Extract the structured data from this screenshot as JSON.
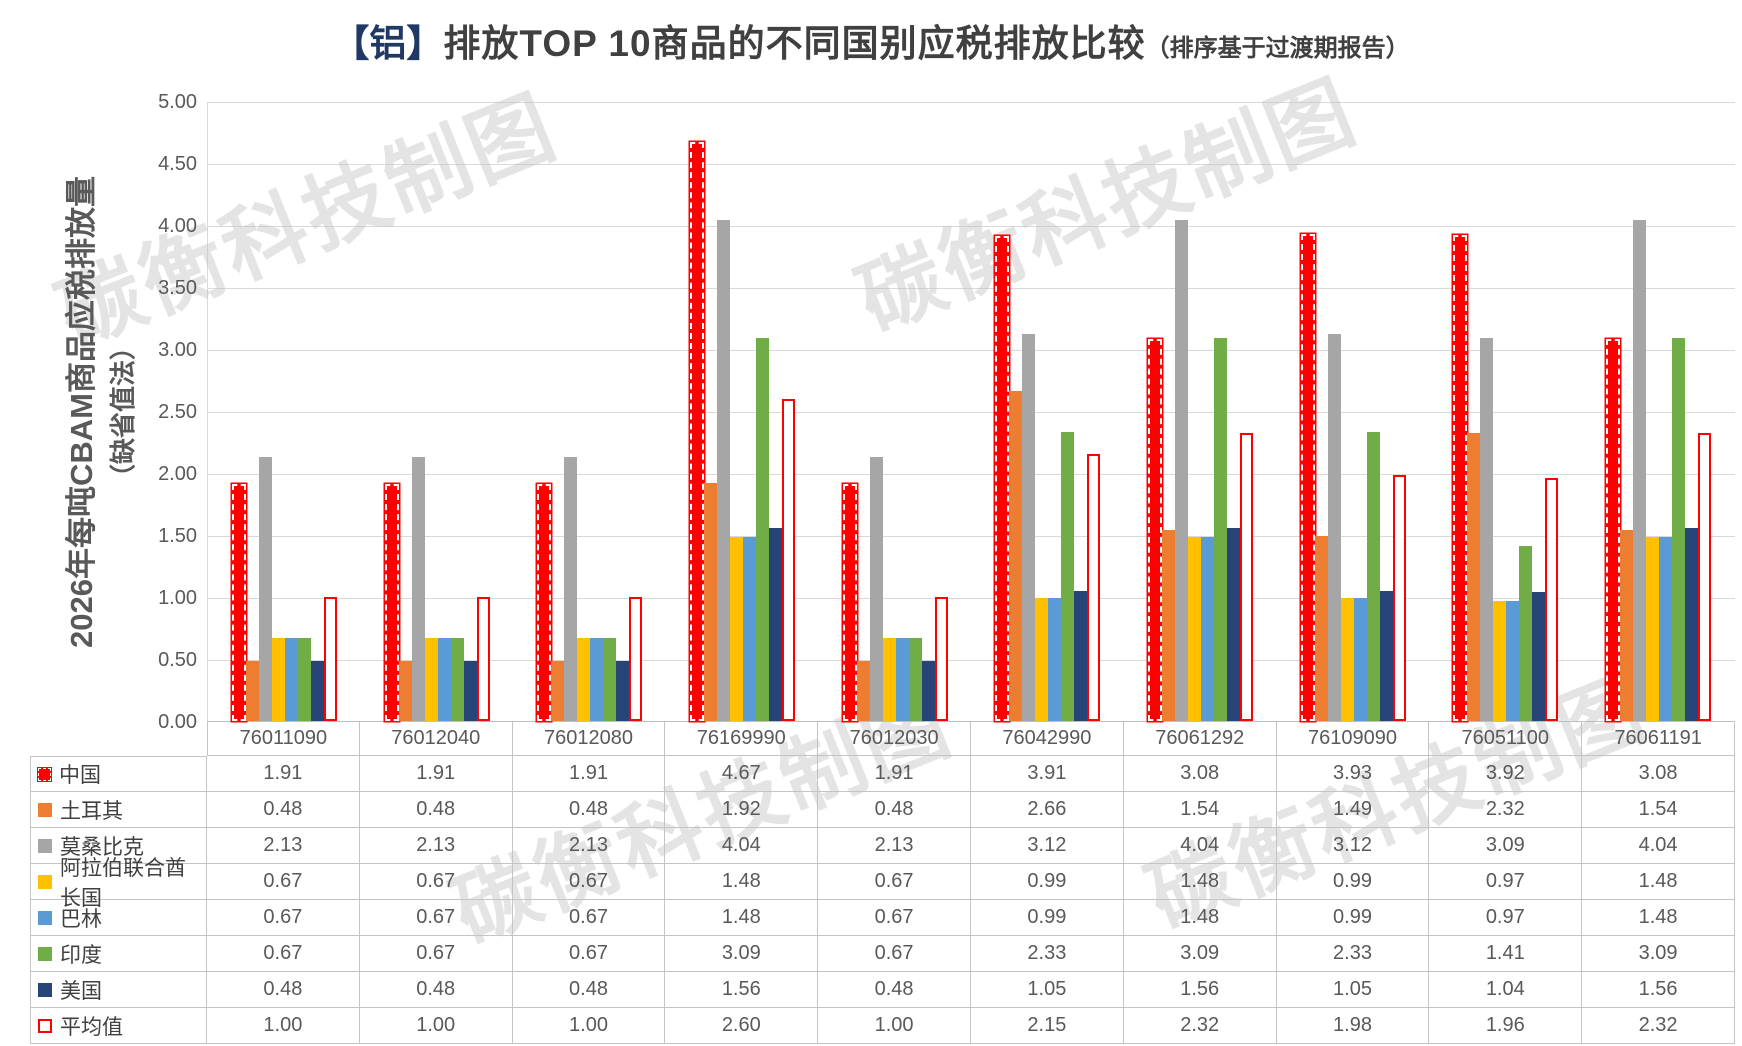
{
  "title": {
    "prefix": "【铝】",
    "main": "排放TOP 10商品的不同国别应税排放比较",
    "suffix": "（排序基于过渡期报告）"
  },
  "watermark": {
    "text": "碳衡科技制图"
  },
  "chart_data": {
    "type": "bar",
    "title": "【铝】排放TOP 10商品的不同国别应税排放比较（排序基于过渡期报告）",
    "ylabel": "2026年每吨CBAM商品应税排放量",
    "ylabel_line2": "（缺省值法）",
    "xlabel": "",
    "ylim": [
      0,
      5
    ],
    "ytick_step": 0.5,
    "yticks": [
      "5.00",
      "4.50",
      "4.00",
      "3.50",
      "3.00",
      "2.50",
      "2.00",
      "1.50",
      "1.00",
      "0.50",
      "0.00"
    ],
    "grid": true,
    "legend_position": "data-table-left",
    "categories": [
      "76011090",
      "76012040",
      "76012080",
      "76169990",
      "76012030",
      "76042990",
      "76061292",
      "76109090",
      "76051100",
      "76061191"
    ],
    "series": [
      {
        "name": "中国",
        "color": "#FF0000",
        "style": "dashed",
        "values": [
          1.91,
          1.91,
          1.91,
          4.67,
          1.91,
          3.91,
          3.08,
          3.93,
          3.92,
          3.08
        ]
      },
      {
        "name": "土耳其",
        "color": "#ED7D31",
        "style": "solid",
        "values": [
          0.48,
          0.48,
          0.48,
          1.92,
          0.48,
          2.66,
          1.54,
          1.49,
          2.32,
          1.54
        ]
      },
      {
        "name": "莫桑比克",
        "color": "#A6A6A6",
        "style": "solid",
        "values": [
          2.13,
          2.13,
          2.13,
          4.04,
          2.13,
          3.12,
          4.04,
          3.12,
          3.09,
          4.04
        ]
      },
      {
        "name": "阿拉伯联合酋长国",
        "color": "#FFC000",
        "style": "solid",
        "values": [
          0.67,
          0.67,
          0.67,
          1.48,
          0.67,
          0.99,
          1.48,
          0.99,
          0.97,
          1.48
        ]
      },
      {
        "name": "巴林",
        "color": "#5B9BD5",
        "style": "solid",
        "values": [
          0.67,
          0.67,
          0.67,
          1.48,
          0.67,
          0.99,
          1.48,
          0.99,
          0.97,
          1.48
        ]
      },
      {
        "name": "印度",
        "color": "#70AD47",
        "style": "solid",
        "values": [
          0.67,
          0.67,
          0.67,
          3.09,
          0.67,
          2.33,
          3.09,
          2.33,
          1.41,
          3.09
        ]
      },
      {
        "name": "美国",
        "color": "#264478",
        "style": "solid",
        "values": [
          0.48,
          0.48,
          0.48,
          1.56,
          0.48,
          1.05,
          1.56,
          1.05,
          1.04,
          1.56
        ]
      },
      {
        "name": "平均值",
        "color": "#FF0000",
        "style": "outline",
        "values": [
          1.0,
          1.0,
          1.0,
          2.6,
          1.0,
          2.15,
          2.32,
          1.98,
          1.96,
          2.32
        ]
      }
    ]
  }
}
